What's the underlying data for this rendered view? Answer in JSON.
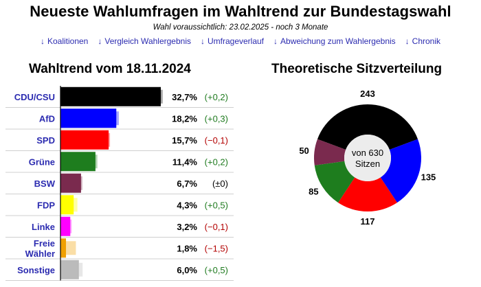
{
  "header": {
    "title": "Neueste Wahlumfragen im Wahltrend zur Bundestagswahl",
    "subtitle": "Wahl voraussichtlich: 23.02.2025 - noch 3 Monate"
  },
  "nav": [
    {
      "arrow": "↓",
      "label": "Koalitionen"
    },
    {
      "arrow": "↓",
      "label": "Vergleich Wahlergebnis"
    },
    {
      "arrow": "↓",
      "label": "Umfrageverlauf"
    },
    {
      "arrow": "↓",
      "label": "Abweichung zum Wahlergebnis"
    },
    {
      "arrow": "↓",
      "label": "Chronik"
    }
  ],
  "colors": {
    "positive": "#1e7a1e",
    "negative": "#b30000",
    "neutral": "#000000",
    "link": "#2b2bb0"
  },
  "chart_data": [
    {
      "type": "bar",
      "orientation": "horizontal",
      "title": "Wahltrend vom 18.11.2024",
      "xlim": [
        0,
        32.7
      ],
      "categories": [
        {
          "lines": [
            "CDU/CSU"
          ],
          "value": 32.7,
          "value_label": "32,7%",
          "change": 0.2,
          "change_label": "(+0,2)",
          "color": "#000000"
        },
        {
          "lines": [
            "AfD"
          ],
          "value": 18.2,
          "value_label": "18,2%",
          "change": 0.3,
          "change_label": "(+0,3)",
          "color": "#0000ff"
        },
        {
          "lines": [
            "SPD"
          ],
          "value": 15.7,
          "value_label": "15,7%",
          "change": -0.1,
          "change_label": "(−0,1)",
          "color": "#ff0000"
        },
        {
          "lines": [
            "Grüne"
          ],
          "value": 11.4,
          "value_label": "11,4%",
          "change": 0.2,
          "change_label": "(+0,2)",
          "color": "#1e7d1e"
        },
        {
          "lines": [
            "BSW"
          ],
          "value": 6.7,
          "value_label": "6,7%",
          "change": 0.0,
          "change_label": "(±0)",
          "color": "#7a2a4e"
        },
        {
          "lines": [
            "FDP"
          ],
          "value": 4.3,
          "value_label": "4,3%",
          "change": 0.5,
          "change_label": "(+0,5)",
          "color": "#ffff00"
        },
        {
          "lines": [
            "Linke"
          ],
          "value": 3.2,
          "value_label": "3,2%",
          "change": -0.1,
          "change_label": "(−0,1)",
          "color": "#ff00ff"
        },
        {
          "lines": [
            "Freie",
            "Wähler"
          ],
          "value": 1.8,
          "value_label": "1,8%",
          "change": -1.5,
          "change_label": "(−1,5)",
          "color": "#f0a000"
        },
        {
          "lines": [
            "Sonstige"
          ],
          "value": 6.0,
          "value_label": "6,0%",
          "change": 0.5,
          "change_label": "(+0,5)",
          "color": "#bbbbbb"
        }
      ]
    },
    {
      "type": "pie",
      "variant": "donut",
      "title": "Theoretische Sitzverteilung",
      "center_lines": [
        "von 630",
        "Sitzen"
      ],
      "slices": [
        {
          "party": "CDU/CSU",
          "value": 243,
          "color": "#000000"
        },
        {
          "party": "AfD",
          "value": 135,
          "color": "#0000ff"
        },
        {
          "party": "SPD",
          "value": 117,
          "color": "#ff0000"
        },
        {
          "party": "Grüne",
          "value": 85,
          "color": "#1e7d1e"
        },
        {
          "party": "BSW",
          "value": 50,
          "color": "#7a2a4e"
        }
      ]
    }
  ]
}
